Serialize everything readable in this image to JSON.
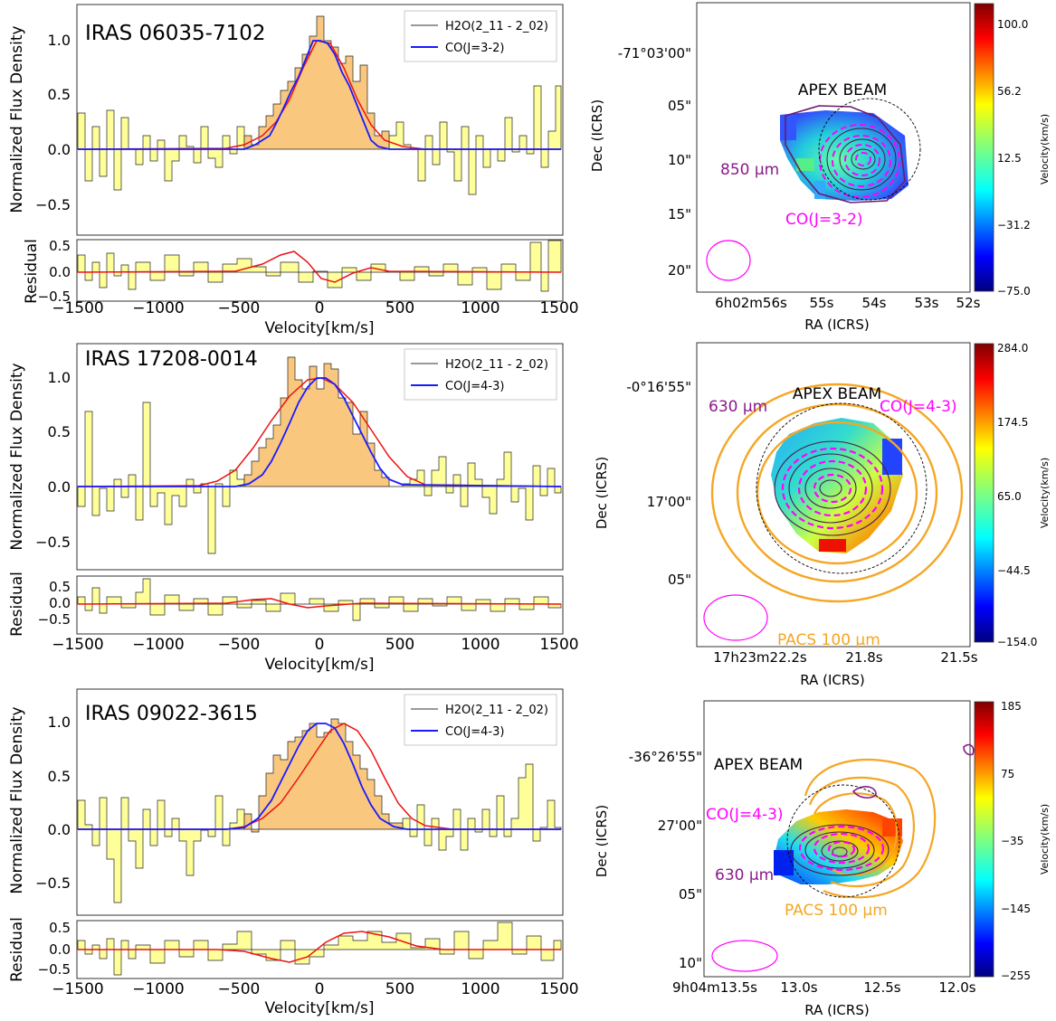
{
  "figure": {
    "rows": [
      {
        "spectrum": {
          "source": "IRAS 06035-7102",
          "legend": [
            "H2O(2_11 - 2_02)",
            "CO(J=3-2)"
          ],
          "y_ticks": [
            "1.0",
            "0.5",
            "0.0",
            "−0.5"
          ],
          "res_ticks": [
            "0.5",
            "0.0",
            "−0.5"
          ],
          "ylabel": "Normalized Flux Density",
          "res_label": "Residual",
          "x_ticks": [
            "−1500",
            "−1000",
            "−500",
            "0",
            "500",
            "1000",
            "1500"
          ],
          "xlabel": "Velocity[km/s]"
        },
        "map": {
          "dec_ticks": [
            "-71°03'00\"",
            "05\"",
            "10\"",
            "15\"",
            "20\""
          ],
          "ra_ticks": [
            "6h02m56s",
            "55s",
            "54s",
            "53s",
            "52s"
          ],
          "ra_label": "RA (ICRS)",
          "dec_label": "Dec (ICRS)",
          "annotations": {
            "apex": "APEX BEAM",
            "dust": "850 μm",
            "co": "CO(J=3-2)"
          },
          "colorbar_ticks": [
            "100.0",
            "56.2",
            "12.5",
            "−31.2",
            "−75.0"
          ],
          "colorbar_label": "Velocity(km/s)"
        }
      },
      {
        "spectrum": {
          "source": "IRAS 17208-0014",
          "legend": [
            "H2O(2_11 - 2_02)",
            "CO(J=4-3)"
          ],
          "y_ticks": [
            "1.0",
            "0.5",
            "0.0",
            "−0.5"
          ],
          "res_ticks": [
            "0.5",
            "0.0",
            "−0.5"
          ],
          "ylabel": "Normalized Flux Density",
          "res_label": "Residual",
          "x_ticks": [
            "−1500",
            "−1000",
            "−500",
            "0",
            "500",
            "1000",
            "1500"
          ],
          "xlabel": "Velocity[km/s]"
        },
        "map": {
          "dec_ticks": [
            "-0°16'55\"",
            "17'00\"",
            "05\""
          ],
          "ra_ticks": [
            "17h23m22.2s",
            "21.8s",
            "21.5s"
          ],
          "ra_label": "RA (ICRS)",
          "dec_label": "Dec (ICRS)",
          "annotations": {
            "apex": "APEX BEAM",
            "dust": "630 μm",
            "co": "CO(J=4-3)",
            "pacs": "PACS 100 μm"
          },
          "colorbar_ticks": [
            "284.0",
            "174.5",
            "65.0",
            "−44.5",
            "−154.0"
          ],
          "colorbar_label": "Velocity(km/s)"
        }
      },
      {
        "spectrum": {
          "source": "IRAS 09022-3615",
          "legend": [
            "H2O(2_11 - 2_02)",
            "CO(J=4-3)"
          ],
          "y_ticks": [
            "1.0",
            "0.5",
            "0.0",
            "−0.5"
          ],
          "res_ticks": [
            "0.5",
            "0.0",
            "−0.5"
          ],
          "ylabel": "Normalized Flux Density",
          "res_label": "Residual",
          "x_ticks": [
            "−1500",
            "−1000",
            "−500",
            "0",
            "500",
            "1000",
            "1500"
          ],
          "xlabel": "Velocity[km/s]"
        },
        "map": {
          "dec_ticks": [
            "-36°26'55\"",
            "27'00\"",
            "05\"",
            "10\""
          ],
          "ra_ticks": [
            "9h04m13.5s",
            "13.0s",
            "12.5s",
            "12.0s"
          ],
          "ra_label": "RA (ICRS)",
          "dec_label": "Dec (ICRS)",
          "annotations": {
            "apex": "APEX BEAM",
            "dust": "630 μm",
            "co": "CO(J=4-3)",
            "pacs": "PACS 100 μm"
          },
          "colorbar_ticks": [
            "185",
            "75",
            "−35",
            "−145",
            "−255"
          ],
          "colorbar_label": "Velocity(km/s)"
        }
      }
    ]
  },
  "colors": {
    "water_fill": "#f9c77e",
    "noise_fill": "#ffff99",
    "co_line": "#1a1aff",
    "fit_line": "#ee1111",
    "pacs": "#f5a623",
    "co_contour": "#ff00ff",
    "dust_contour": "#6a1b6a"
  }
}
